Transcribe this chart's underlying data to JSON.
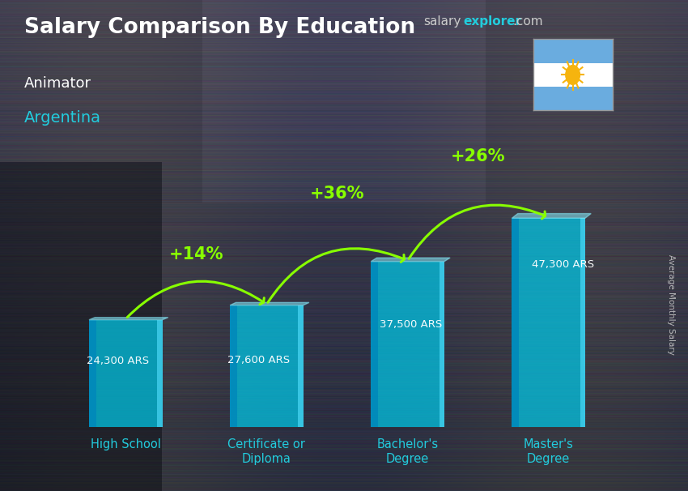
{
  "title": "Salary Comparison By Education",
  "subtitle_job": "Animator",
  "subtitle_country": "Argentina",
  "ylabel": "Average Monthly Salary",
  "categories": [
    "High School",
    "Certificate or\nDiploma",
    "Bachelor's\nDegree",
    "Master's\nDegree"
  ],
  "values": [
    24300,
    27600,
    37500,
    47300
  ],
  "value_labels": [
    "24,300 ARS",
    "27,600 ARS",
    "37,500 ARS",
    "47,300 ARS"
  ],
  "pct_labels": [
    "+14%",
    "+36%",
    "+26%"
  ],
  "bar_color": "#00c8e8",
  "bar_left_color": "#0088bb",
  "bar_right_color": "#55e0ff",
  "bar_top_color": "#88eeff",
  "arrow_color": "#88ff00",
  "pct_color": "#88ff00",
  "title_color": "#ffffff",
  "subtitle_job_color": "#ffffff",
  "subtitle_country_color": "#22ccdd",
  "value_label_color": "#ffffff",
  "xlabel_color": "#22ccdd",
  "ylabel_color": "#cccccc",
  "brand_salary_color": "#bbbbbb",
  "brand_explorer_color": "#22ccdd",
  "brand_dot_com_color": "#bbbbbb",
  "ylim": [
    0,
    60000
  ],
  "bar_width": 0.52,
  "bar_alpha": 0.72
}
